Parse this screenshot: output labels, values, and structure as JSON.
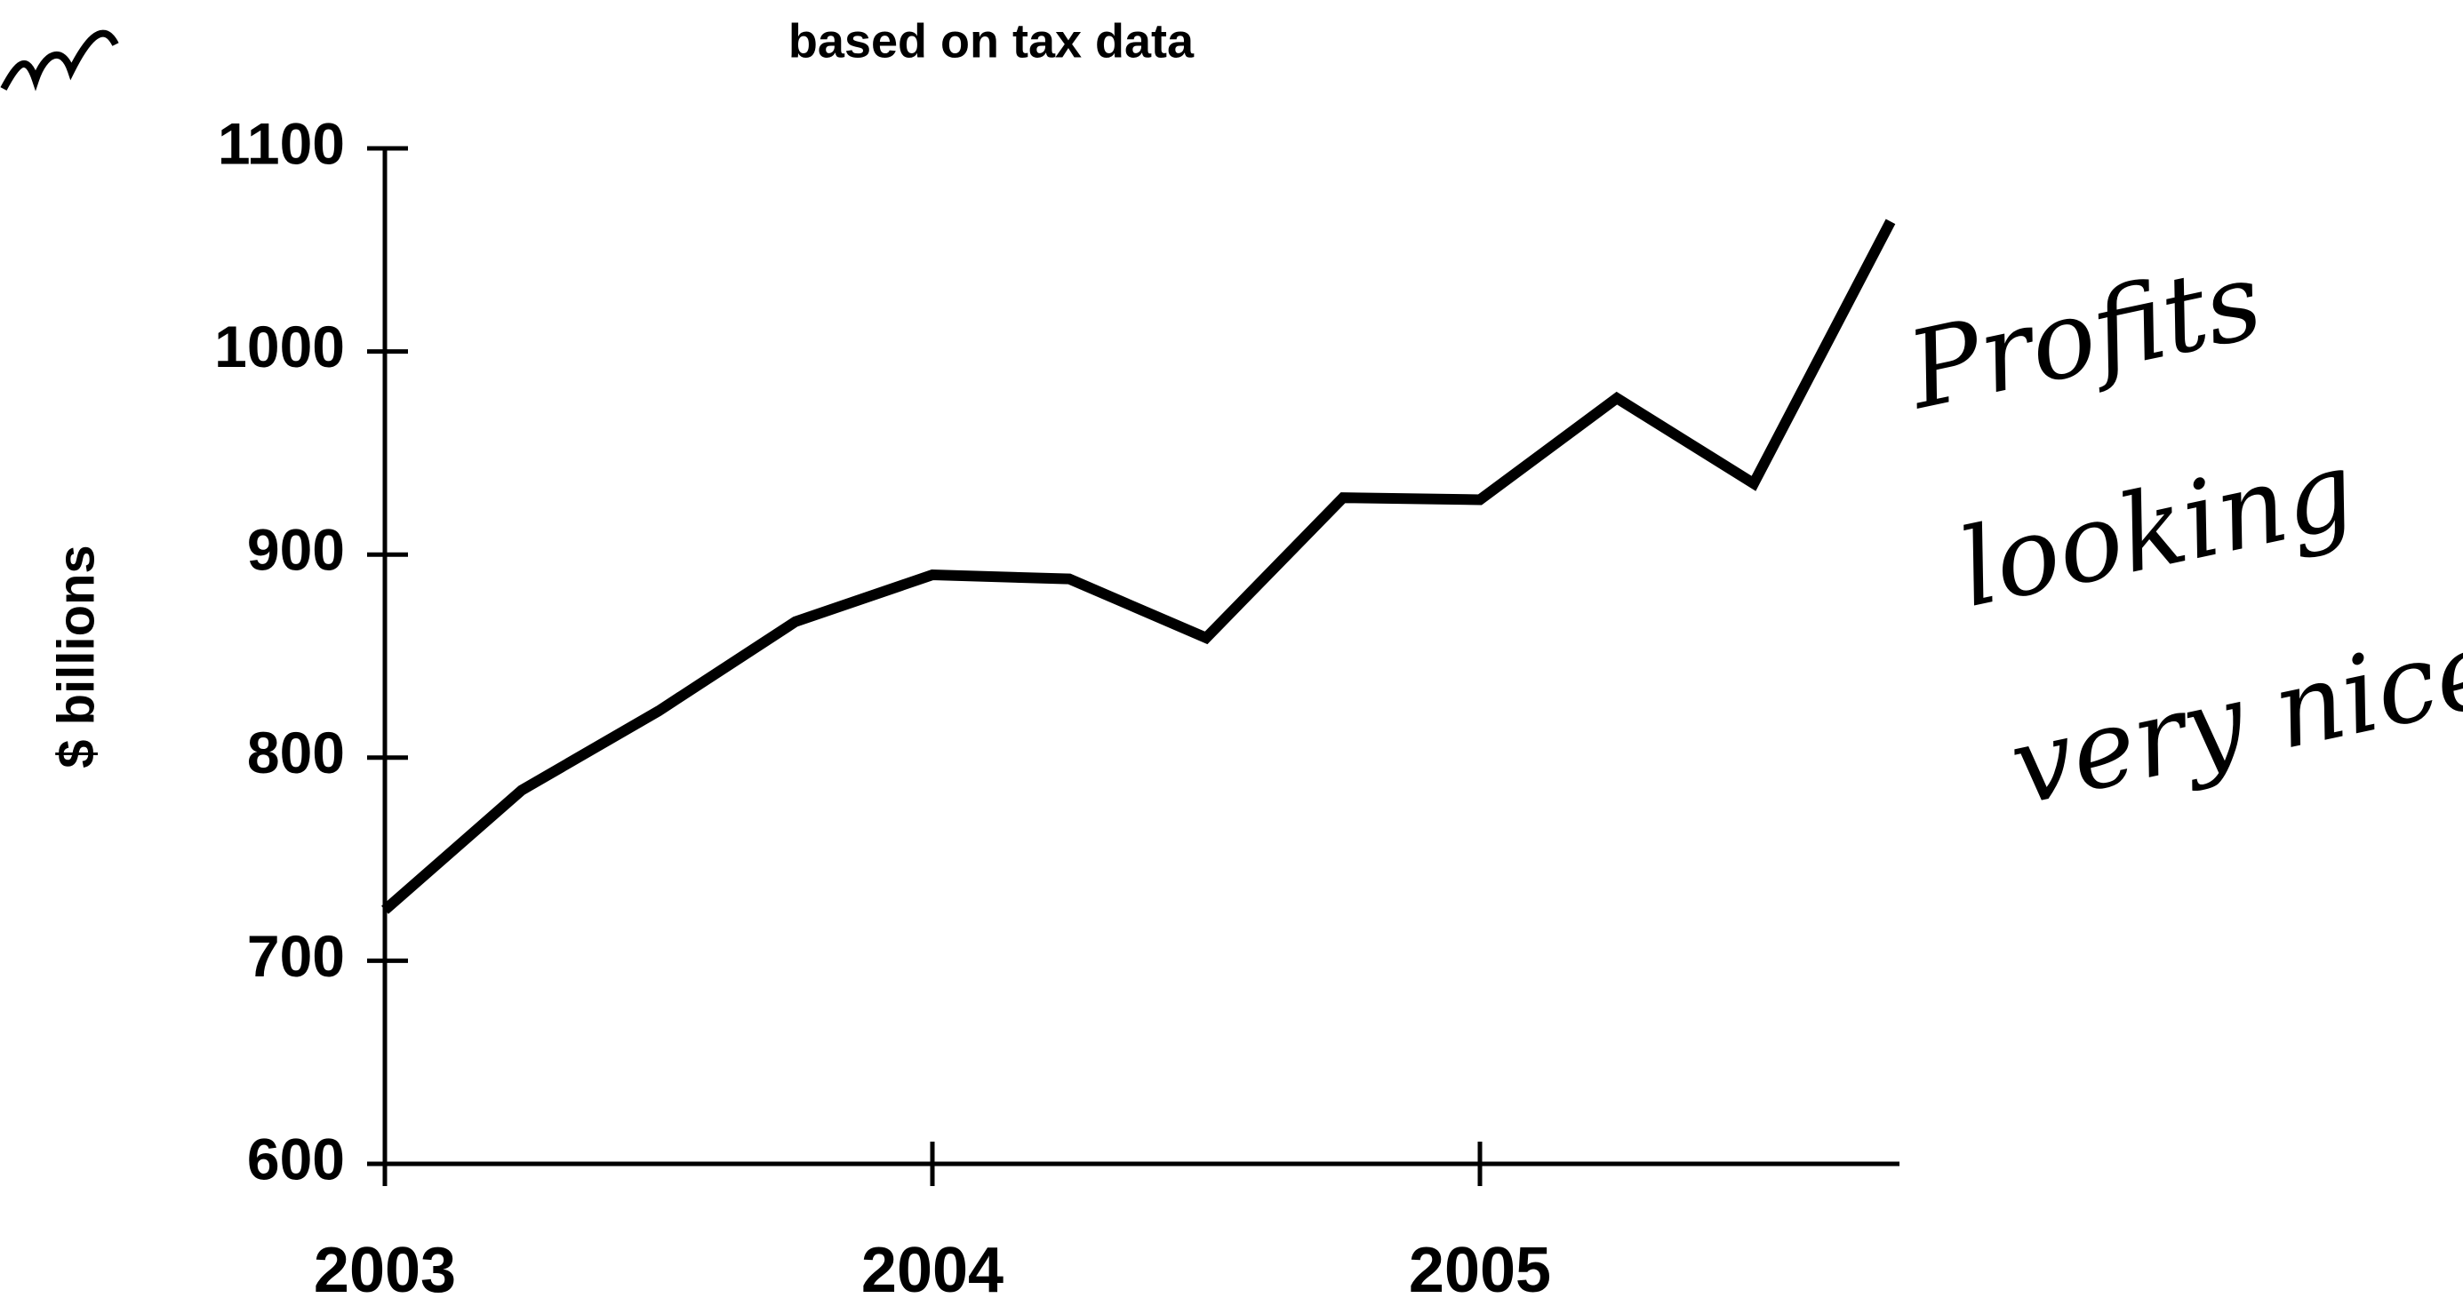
{
  "chart_data": {
    "type": "line",
    "subtitle": "based on tax data",
    "y_label": "$ billions",
    "annotation": [
      "Profits",
      "looking",
      "very nice."
    ],
    "x": [
      2003,
      2003.25,
      2003.5,
      2003.75,
      2004,
      2004.25,
      2004.5,
      2004.75,
      2005,
      2005.25,
      2005.5,
      2005.75
    ],
    "series": [
      {
        "name": "Profits",
        "color": "#000000",
        "values": [
          725,
          784,
          823,
          867,
          890,
          888,
          859,
          928,
          927,
          977,
          935,
          1064
        ]
      }
    ],
    "xlim": [
      2003,
      2005.75
    ],
    "xticks": [
      2003,
      2004,
      2005
    ],
    "ylim": [
      600,
      1100
    ],
    "yticks": [
      600,
      700,
      800,
      900,
      1000,
      1100
    ],
    "grid": false
  }
}
